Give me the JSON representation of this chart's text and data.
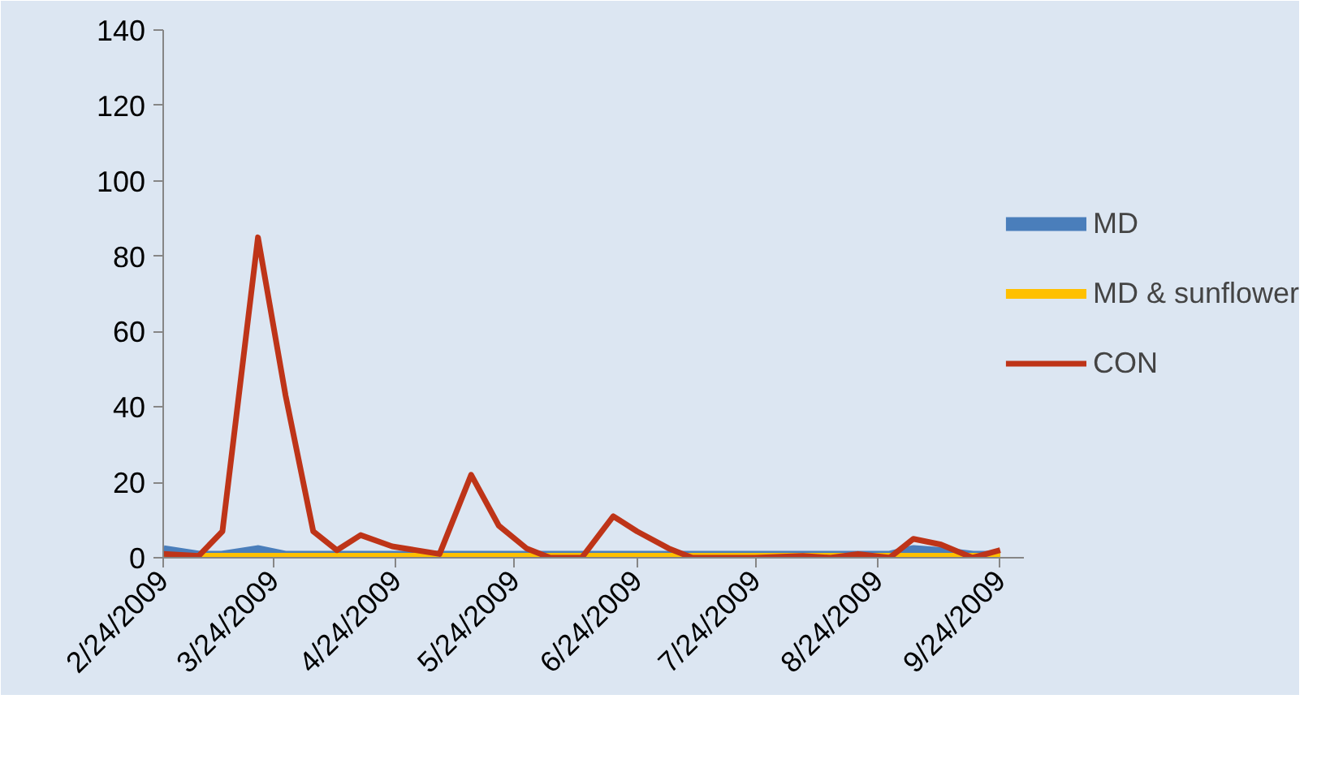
{
  "chart_data": {
    "type": "line",
    "x": [
      "2009-02-24",
      "2009-03-05",
      "2009-03-11",
      "2009-03-20",
      "2009-03-27",
      "2009-04-03",
      "2009-04-09",
      "2009-04-15",
      "2009-04-23",
      "2009-05-05",
      "2009-05-13",
      "2009-05-20",
      "2009-05-27",
      "2009-06-02",
      "2009-06-10",
      "2009-06-18",
      "2009-06-24",
      "2009-07-02",
      "2009-07-08",
      "2009-07-24",
      "2009-08-05",
      "2009-08-12",
      "2009-08-19",
      "2009-08-27",
      "2009-09-02",
      "2009-09-09",
      "2009-09-17",
      "2009-09-24"
    ],
    "series": [
      {
        "name": "MD",
        "color": "#4a7ebb",
        "values": [
          1.5,
          0,
          0,
          1.5,
          0,
          0,
          0,
          0,
          0,
          0,
          0,
          0,
          0,
          0,
          0,
          0,
          0,
          0,
          0,
          0,
          0,
          0,
          0,
          0,
          1.5,
          1,
          0,
          0
        ]
      },
      {
        "name": "MD & sunflower",
        "color": "#ffc000",
        "values": [
          0,
          0,
          0,
          0,
          0,
          0,
          0,
          0,
          0,
          0,
          0,
          0,
          0,
          0,
          0,
          0,
          0,
          0,
          0,
          0,
          0,
          0,
          0,
          0,
          0,
          0,
          0,
          0
        ]
      },
      {
        "name": "CON",
        "color": "#be3418",
        "values": [
          1,
          0.5,
          7,
          85,
          43,
          7,
          2,
          6,
          3,
          1,
          22,
          8.5,
          2.5,
          0,
          0,
          11,
          7,
          2.5,
          0,
          0,
          0.5,
          0,
          1,
          0,
          5,
          3.5,
          0,
          2
        ]
      }
    ],
    "xlim": [
      "2009-02-24",
      "2009-09-30"
    ],
    "xticks": [
      {
        "value": "2009-02-24",
        "label": "2/24/2009"
      },
      {
        "value": "2009-03-24",
        "label": "3/24/2009"
      },
      {
        "value": "2009-04-24",
        "label": "4/24/2009"
      },
      {
        "value": "2009-05-24",
        "label": "5/24/2009"
      },
      {
        "value": "2009-06-24",
        "label": "6/24/2009"
      },
      {
        "value": "2009-07-24",
        "label": "7/24/2009"
      },
      {
        "value": "2009-08-24",
        "label": "8/24/2009"
      },
      {
        "value": "2009-09-24",
        "label": "9/24/2009"
      }
    ],
    "ylim": [
      0,
      140
    ],
    "yticks": [
      0,
      20,
      40,
      60,
      80,
      100,
      120,
      140
    ],
    "grid": false,
    "legend": "right",
    "marker": "none",
    "line_style": "solid"
  }
}
